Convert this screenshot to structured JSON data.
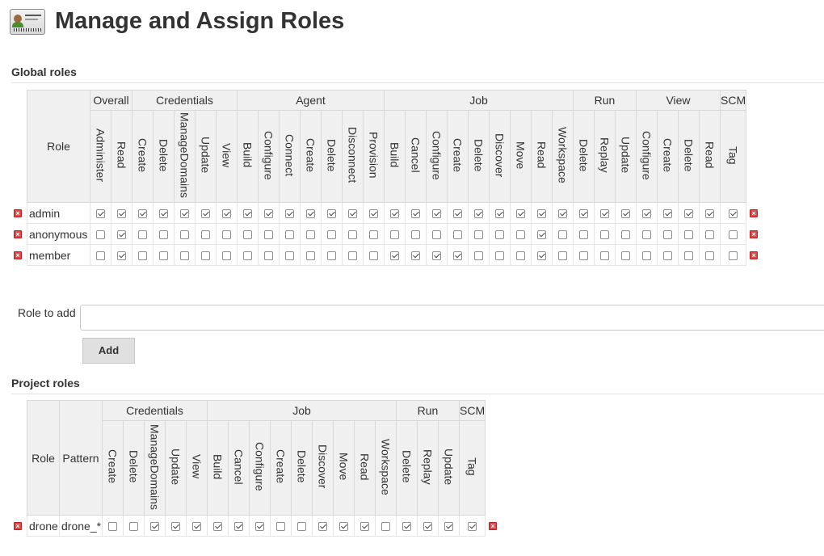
{
  "page": {
    "title": "Manage and Assign Roles",
    "icon": "id-card-icon"
  },
  "global": {
    "heading": "Global roles",
    "role_header": "Role",
    "groups": [
      {
        "name": "Overall",
        "perms": [
          "Administer",
          "Read"
        ]
      },
      {
        "name": "Credentials",
        "perms": [
          "Create",
          "Delete",
          "ManageDomains",
          "Update",
          "View"
        ]
      },
      {
        "name": "Agent",
        "perms": [
          "Build",
          "Configure",
          "Connect",
          "Create",
          "Delete",
          "Disconnect",
          "Provision"
        ]
      },
      {
        "name": "Job",
        "perms": [
          "Build",
          "Cancel",
          "Configure",
          "Create",
          "Delete",
          "Discover",
          "Move",
          "Read",
          "Workspace"
        ]
      },
      {
        "name": "Run",
        "perms": [
          "Delete",
          "Replay",
          "Update"
        ]
      },
      {
        "name": "View",
        "perms": [
          "Configure",
          "Create",
          "Delete",
          "Read"
        ]
      },
      {
        "name": "SCM",
        "perms": [
          "Tag"
        ]
      }
    ],
    "roles": [
      {
        "name": "admin",
        "checks": [
          1,
          1,
          1,
          1,
          1,
          1,
          1,
          1,
          1,
          1,
          1,
          1,
          1,
          1,
          1,
          1,
          1,
          1,
          1,
          1,
          1,
          1,
          1,
          1,
          1,
          1,
          1,
          1,
          1,
          1,
          1
        ]
      },
      {
        "name": "anonymous",
        "checks": [
          0,
          1,
          0,
          0,
          0,
          0,
          0,
          0,
          0,
          0,
          0,
          0,
          0,
          0,
          0,
          0,
          0,
          0,
          0,
          0,
          0,
          1,
          0,
          0,
          0,
          0,
          0,
          0,
          0,
          0,
          0
        ]
      },
      {
        "name": "member",
        "checks": [
          0,
          1,
          0,
          0,
          0,
          0,
          0,
          0,
          0,
          0,
          0,
          0,
          0,
          0,
          1,
          1,
          1,
          1,
          0,
          0,
          0,
          1,
          0,
          0,
          0,
          0,
          0,
          0,
          0,
          0,
          0
        ]
      }
    ]
  },
  "add_role": {
    "label": "Role to add",
    "value": "",
    "button": "Add"
  },
  "project": {
    "heading": "Project roles",
    "role_header": "Role",
    "pattern_header": "Pattern",
    "groups": [
      {
        "name": "Credentials",
        "perms": [
          "Create",
          "Delete",
          "ManageDomains",
          "Update",
          "View"
        ]
      },
      {
        "name": "Job",
        "perms": [
          "Build",
          "Cancel",
          "Configure",
          "Create",
          "Delete",
          "Discover",
          "Move",
          "Read",
          "Workspace"
        ]
      },
      {
        "name": "Run",
        "perms": [
          "Delete",
          "Replay",
          "Update"
        ]
      },
      {
        "name": "SCM",
        "perms": [
          "Tag"
        ]
      }
    ],
    "roles": [
      {
        "name": "drone",
        "pattern": "drone_*",
        "checks": [
          0,
          0,
          1,
          1,
          1,
          1,
          1,
          1,
          0,
          0,
          1,
          1,
          1,
          0,
          1,
          1,
          1,
          1
        ]
      }
    ]
  },
  "colors": {
    "header_bg": "#f0f0f0",
    "delete_icon": "#e04646"
  }
}
